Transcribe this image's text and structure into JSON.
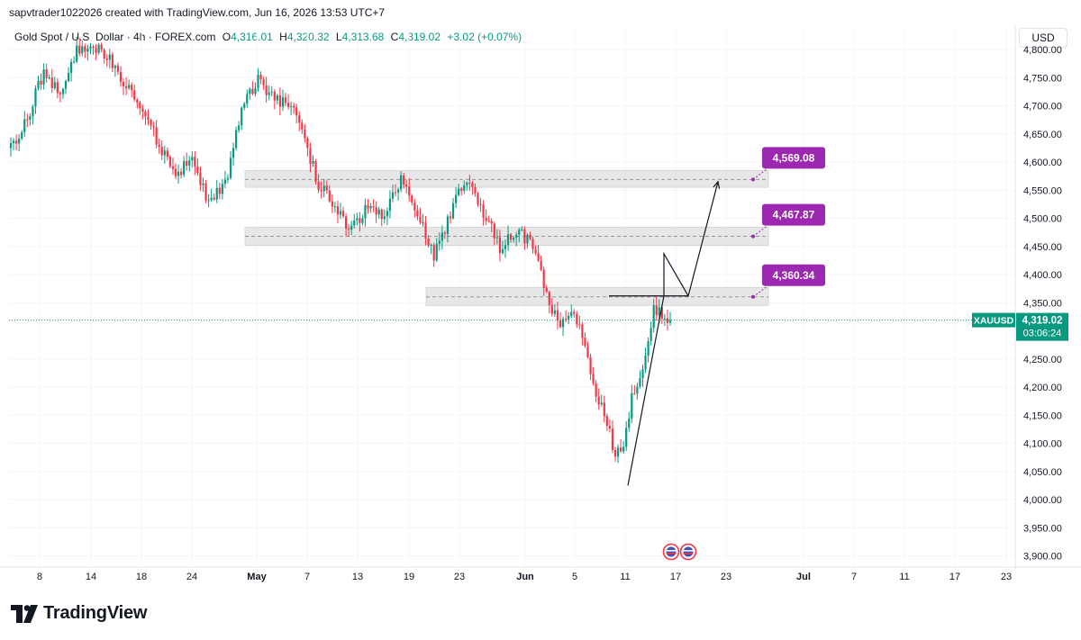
{
  "header": {
    "attribution": "sapvtrader1022026 created with TradingView.com, Jun 16, 2026 13:53 UTC+7"
  },
  "symbol": {
    "name": "Gold Spot / U.S. Dollar · 4h · FOREX.com",
    "open_label": "O",
    "open": "4,316.01",
    "high_label": "H",
    "high": "4,320.32",
    "low_label": "L",
    "low": "4,313.68",
    "close_label": "C",
    "close": "4,319.02",
    "change": "+3.02 (+0.07%)"
  },
  "currency_button": "USD",
  "colors": {
    "up": "#089981",
    "down": "#f23645",
    "zone_fill": "#e6e6e6",
    "label_purple": "#9c27b0",
    "price_tag": "#089981",
    "line": "#131722"
  },
  "price_tag": {
    "ticker": "XAUUSD",
    "price": "4,319.02",
    "countdown": "03:06:24"
  },
  "footer": {
    "brand": "TradingView"
  },
  "chart_data": {
    "type": "candlestick",
    "y_axis": {
      "min": 3880,
      "max": 4840,
      "ticks": [
        {
          "value": 4800,
          "label": "4,800.00"
        },
        {
          "value": 4750,
          "label": "4,750.00"
        },
        {
          "value": 4700,
          "label": "4,700.00"
        },
        {
          "value": 4650,
          "label": "4,650.00"
        },
        {
          "value": 4600,
          "label": "4,600.00"
        },
        {
          "value": 4550,
          "label": "4,550.00"
        },
        {
          "value": 4500,
          "label": "4,500.00"
        },
        {
          "value": 4450,
          "label": "4,450.00"
        },
        {
          "value": 4400,
          "label": "4,400.00"
        },
        {
          "value": 4350,
          "label": "4,350.00"
        },
        {
          "value": 4250,
          "label": "4,250.00"
        },
        {
          "value": 4200,
          "label": "4,200.00"
        },
        {
          "value": 4150,
          "label": "4,150.00"
        },
        {
          "value": 4100,
          "label": "4,100.00"
        },
        {
          "value": 4050,
          "label": "4,050.00"
        },
        {
          "value": 4000,
          "label": "4,000.00"
        },
        {
          "value": 3950,
          "label": "3,950.00"
        },
        {
          "value": 3900,
          "label": "3,900.00"
        }
      ]
    },
    "x_axis": {
      "ticks": [
        {
          "label": "8",
          "bold": false
        },
        {
          "label": "14",
          "bold": false
        },
        {
          "label": "18",
          "bold": false
        },
        {
          "label": "24",
          "bold": false
        },
        {
          "label": "May",
          "bold": true
        },
        {
          "label": "7",
          "bold": false
        },
        {
          "label": "13",
          "bold": false
        },
        {
          "label": "19",
          "bold": false
        },
        {
          "label": "23",
          "bold": false
        },
        {
          "label": "Jun",
          "bold": true
        },
        {
          "label": "5",
          "bold": false
        },
        {
          "label": "11",
          "bold": false
        },
        {
          "label": "17",
          "bold": false
        },
        {
          "label": "23",
          "bold": false
        },
        {
          "label": "Jul",
          "bold": true
        },
        {
          "label": "7",
          "bold": false
        },
        {
          "label": "11",
          "bold": false
        },
        {
          "label": "17",
          "bold": false
        },
        {
          "label": "23",
          "bold": false
        }
      ]
    },
    "current_price": 4319.02,
    "zones": [
      {
        "low": 4555,
        "high": 4585,
        "mid": 4569.08,
        "label": "4,569.08"
      },
      {
        "low": 4452,
        "high": 4484,
        "mid": 4467.87,
        "label": "4,467.87"
      },
      {
        "low": 4345,
        "high": 4377,
        "mid": 4360.34,
        "label": "4,360.34"
      }
    ],
    "path": [
      {
        "label": "Jun 11",
        "y": 4025
      },
      {
        "label": "Jun 15",
        "y": 4362
      },
      {
        "label": "Jun 15",
        "y": 4437
      },
      {
        "label": "Jun 18",
        "y": 4362
      },
      {
        "label": "Jun 22",
        "y": 4565
      }
    ],
    "anchors": [
      {
        "i": 0,
        "p": 4625
      },
      {
        "i": 6,
        "p": 4680
      },
      {
        "i": 12,
        "p": 4760
      },
      {
        "i": 18,
        "p": 4720
      },
      {
        "i": 24,
        "p": 4795
      },
      {
        "i": 30,
        "p": 4810
      },
      {
        "i": 36,
        "p": 4780
      },
      {
        "i": 42,
        "p": 4740
      },
      {
        "i": 48,
        "p": 4700
      },
      {
        "i": 54,
        "p": 4630
      },
      {
        "i": 60,
        "p": 4570
      },
      {
        "i": 66,
        "p": 4610
      },
      {
        "i": 72,
        "p": 4530
      },
      {
        "i": 78,
        "p": 4560
      },
      {
        "i": 84,
        "p": 4700
      },
      {
        "i": 90,
        "p": 4745
      },
      {
        "i": 96,
        "p": 4710
      },
      {
        "i": 102,
        "p": 4700
      },
      {
        "i": 106,
        "p": 4650
      },
      {
        "i": 112,
        "p": 4560
      },
      {
        "i": 118,
        "p": 4520
      },
      {
        "i": 124,
        "p": 4480
      },
      {
        "i": 130,
        "p": 4520
      },
      {
        "i": 136,
        "p": 4500
      },
      {
        "i": 142,
        "p": 4570
      },
      {
        "i": 148,
        "p": 4510
      },
      {
        "i": 154,
        "p": 4430
      },
      {
        "i": 160,
        "p": 4510
      },
      {
        "i": 166,
        "p": 4575
      },
      {
        "i": 172,
        "p": 4510
      },
      {
        "i": 178,
        "p": 4450
      },
      {
        "i": 184,
        "p": 4480
      },
      {
        "i": 190,
        "p": 4450
      },
      {
        "i": 196,
        "p": 4350
      },
      {
        "i": 200,
        "p": 4300
      },
      {
        "i": 204,
        "p": 4340
      },
      {
        "i": 208,
        "p": 4290
      },
      {
        "i": 212,
        "p": 4200
      },
      {
        "i": 216,
        "p": 4160
      },
      {
        "i": 220,
        "p": 4080
      },
      {
        "i": 223,
        "p": 4100
      },
      {
        "i": 226,
        "p": 4180
      },
      {
        "i": 230,
        "p": 4240
      },
      {
        "i": 234,
        "p": 4335
      },
      {
        "i": 237,
        "p": 4330
      },
      {
        "i": 240,
        "p": 4318
      }
    ]
  }
}
